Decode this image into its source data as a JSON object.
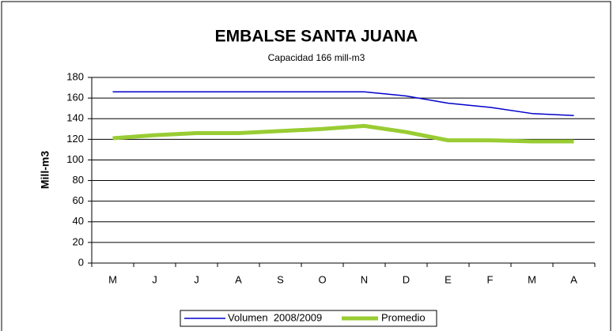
{
  "chart_data": {
    "type": "line",
    "title": "EMBALSE SANTA JUANA",
    "subtitle": "Capacidad 166 mill-m3",
    "y_label": "Mill-m3",
    "categories": [
      "M",
      "J",
      "J",
      "A",
      "S",
      "O",
      "N",
      "D",
      "E",
      "F",
      "M",
      "A"
    ],
    "series": [
      {
        "name": "Volumen  2008/2009",
        "color": "#0000cc",
        "width": 1.5,
        "values": [
          166,
          166,
          166,
          166,
          166,
          166,
          166,
          162,
          155,
          151,
          145,
          143
        ]
      },
      {
        "name": "Promedio",
        "color": "#99cc33",
        "width": 5,
        "values": [
          121,
          124,
          126,
          126,
          128,
          130,
          133,
          127,
          119,
          119,
          118,
          118
        ]
      }
    ],
    "ylim": [
      0,
      180
    ],
    "yticks": [
      0,
      20,
      40,
      60,
      80,
      100,
      120,
      140,
      160,
      180
    ],
    "grid": true
  }
}
